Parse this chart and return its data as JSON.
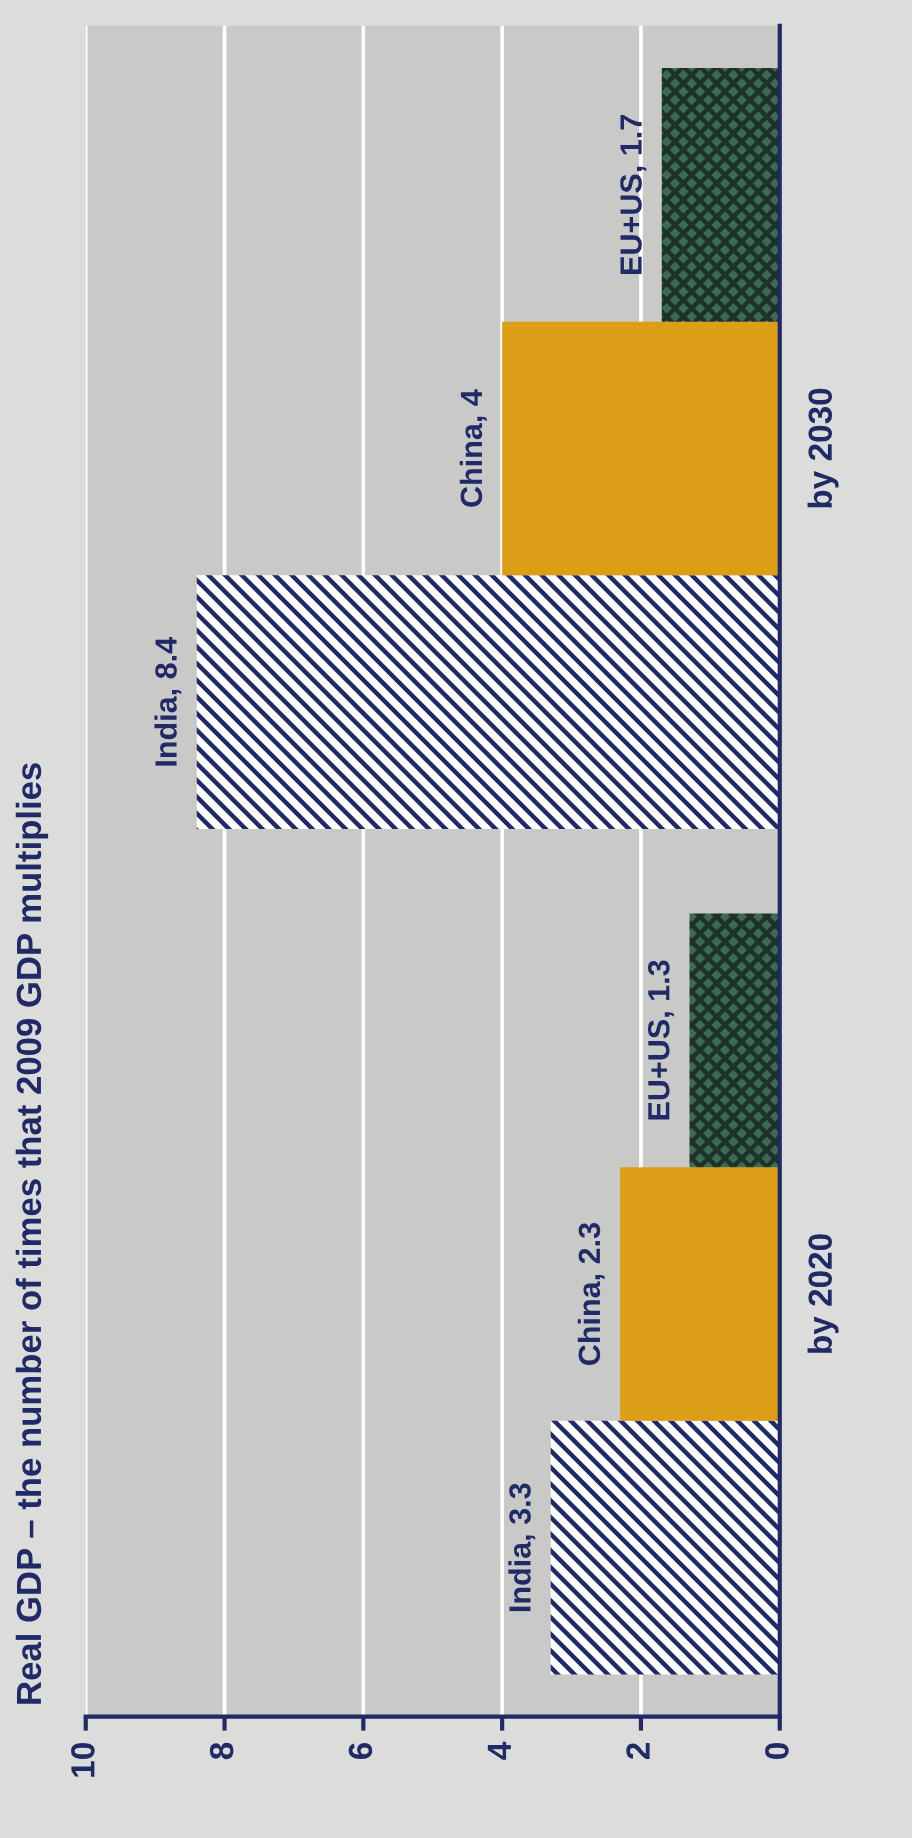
{
  "chart_data": {
    "type": "bar",
    "orientation": "horizontal",
    "title": "Real GDP – the number of times that 2009 GDP multiplies",
    "categories": [
      "by 2030",
      "by 2020"
    ],
    "series": [
      {
        "name": "India",
        "color": "#1f2a66",
        "values": [
          8.4,
          3.3
        ],
        "value_labels": [
          ", 8.4",
          ", 3.3"
        ]
      },
      {
        "name": "China",
        "color": "#dc9e16",
        "values": [
          4,
          2.3
        ],
        "value_labels": [
          ", 4",
          ", 2.3"
        ]
      },
      {
        "name": "EU+US",
        "color": "#3c6a55",
        "values": [
          1.7,
          1.3
        ],
        "value_labels": [
          ", 1.7",
          ", 1.3"
        ]
      }
    ],
    "xlim": [
      10,
      0
    ],
    "xticks": [
      0,
      2,
      4,
      6,
      8,
      10
    ],
    "grid": "x"
  }
}
